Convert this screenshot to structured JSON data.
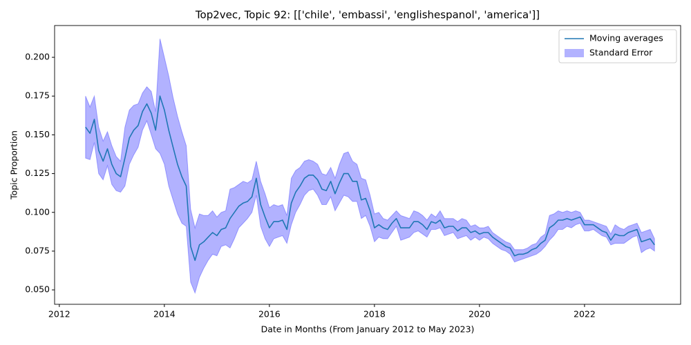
{
  "chart_data": {
    "type": "line",
    "title": "Top2vec, Topic 92: [['chile', 'embassi', 'englishespanol', 'america']]",
    "xlabel": "Date in Months (From January 2012 to May 2023)",
    "ylabel": "Topic Proportion",
    "xlim": [
      2011.91,
      2023.83
    ],
    "ylim": [
      0.0407,
      0.2205
    ],
    "xticks": [
      2012,
      2014,
      2016,
      2018,
      2020,
      2022
    ],
    "yticks": [
      {
        "value": 0.05,
        "label": "0.050"
      },
      0.075,
      {
        "value": 0.1,
        "label": "0.100"
      },
      0.125,
      {
        "value": 0.15,
        "label": "0.150"
      },
      0.175,
      {
        "value": 0.2,
        "label": "0.200"
      }
    ],
    "legend": "upper right",
    "x": [
      2012.5,
      2012.583,
      2012.667,
      2012.75,
      2012.833,
      2012.917,
      2013.0,
      2013.083,
      2013.167,
      2013.25,
      2013.333,
      2013.417,
      2013.5,
      2013.583,
      2013.667,
      2013.75,
      2013.833,
      2013.917,
      2014.0,
      2014.083,
      2014.167,
      2014.25,
      2014.333,
      2014.417,
      2014.5,
      2014.583,
      2014.667,
      2014.75,
      2014.833,
      2014.917,
      2015.0,
      2015.083,
      2015.167,
      2015.25,
      2015.333,
      2015.417,
      2015.5,
      2015.583,
      2015.667,
      2015.75,
      2015.833,
      2015.917,
      2016.0,
      2016.083,
      2016.167,
      2016.25,
      2016.333,
      2016.417,
      2016.5,
      2016.583,
      2016.667,
      2016.75,
      2016.833,
      2016.917,
      2017.0,
      2017.083,
      2017.167,
      2017.25,
      2017.333,
      2017.417,
      2017.5,
      2017.583,
      2017.667,
      2017.75,
      2017.833,
      2017.917,
      2018.0,
      2018.083,
      2018.167,
      2018.25,
      2018.333,
      2018.417,
      2018.5,
      2018.583,
      2018.667,
      2018.75,
      2018.833,
      2018.917,
      2019.0,
      2019.083,
      2019.167,
      2019.25,
      2019.333,
      2019.417,
      2019.5,
      2019.583,
      2019.667,
      2019.75,
      2019.833,
      2019.917,
      2020.0,
      2020.083,
      2020.167,
      2020.25,
      2020.333,
      2020.417,
      2020.5,
      2020.583,
      2020.667,
      2020.75,
      2020.833,
      2020.917,
      2021.0,
      2021.083,
      2021.167,
      2021.25,
      2021.333,
      2021.417,
      2021.5,
      2021.583,
      2021.667,
      2021.75,
      2021.833,
      2021.917,
      2022.0,
      2022.083,
      2022.167,
      2022.25,
      2022.333,
      2022.417,
      2022.5,
      2022.583,
      2022.667,
      2022.75,
      2022.833,
      2022.917,
      2023.0,
      2023.083,
      2023.167,
      2023.25,
      2023.333
    ],
    "series": [
      {
        "name": "Moving averages",
        "color": "#1f77b4",
        "values": [
          0.155,
          0.151,
          0.16,
          0.14,
          0.133,
          0.141,
          0.131,
          0.125,
          0.123,
          0.135,
          0.148,
          0.153,
          0.156,
          0.165,
          0.17,
          0.164,
          0.153,
          0.175,
          0.166,
          0.153,
          0.142,
          0.131,
          0.123,
          0.117,
          0.078,
          0.069,
          0.079,
          0.081,
          0.084,
          0.087,
          0.085,
          0.089,
          0.09,
          0.096,
          0.1,
          0.104,
          0.106,
          0.107,
          0.11,
          0.122,
          0.105,
          0.097,
          0.09,
          0.094,
          0.094,
          0.095,
          0.089,
          0.106,
          0.113,
          0.117,
          0.122,
          0.124,
          0.124,
          0.121,
          0.115,
          0.114,
          0.12,
          0.112,
          0.119,
          0.125,
          0.125,
          0.12,
          0.12,
          0.108,
          0.109,
          0.101,
          0.09,
          0.092,
          0.09,
          0.089,
          0.093,
          0.096,
          0.09,
          0.09,
          0.09,
          0.094,
          0.094,
          0.092,
          0.089,
          0.094,
          0.093,
          0.095,
          0.09,
          0.091,
          0.091,
          0.088,
          0.09,
          0.09,
          0.087,
          0.088,
          0.086,
          0.087,
          0.087,
          0.084,
          0.082,
          0.08,
          0.078,
          0.077,
          0.072,
          0.073,
          0.073,
          0.074,
          0.076,
          0.077,
          0.08,
          0.082,
          0.09,
          0.092,
          0.095,
          0.095,
          0.096,
          0.095,
          0.096,
          0.097,
          0.092,
          0.092,
          0.092,
          0.09,
          0.088,
          0.087,
          0.082,
          0.086,
          0.085,
          0.085,
          0.087,
          0.088,
          0.089,
          0.081,
          0.082,
          0.083,
          0.079
        ]
      }
    ],
    "band": {
      "name": "Standard Error",
      "color": "#0000ff",
      "upper": [
        0.175,
        0.168,
        0.175,
        0.155,
        0.146,
        0.152,
        0.143,
        0.136,
        0.133,
        0.155,
        0.166,
        0.169,
        0.17,
        0.177,
        0.181,
        0.178,
        0.165,
        0.212,
        0.2,
        0.188,
        0.174,
        0.162,
        0.152,
        0.143,
        0.102,
        0.09,
        0.099,
        0.098,
        0.098,
        0.101,
        0.097,
        0.1,
        0.101,
        0.115,
        0.116,
        0.118,
        0.12,
        0.119,
        0.121,
        0.133,
        0.12,
        0.112,
        0.103,
        0.105,
        0.104,
        0.105,
        0.098,
        0.122,
        0.127,
        0.129,
        0.133,
        0.134,
        0.133,
        0.131,
        0.125,
        0.124,
        0.129,
        0.122,
        0.131,
        0.138,
        0.139,
        0.133,
        0.131,
        0.122,
        0.121,
        0.111,
        0.099,
        0.1,
        0.096,
        0.095,
        0.098,
        0.101,
        0.098,
        0.097,
        0.096,
        0.101,
        0.1,
        0.098,
        0.095,
        0.099,
        0.097,
        0.101,
        0.096,
        0.096,
        0.096,
        0.094,
        0.096,
        0.095,
        0.091,
        0.092,
        0.09,
        0.09,
        0.091,
        0.087,
        0.085,
        0.083,
        0.081,
        0.08,
        0.076,
        0.076,
        0.076,
        0.077,
        0.079,
        0.08,
        0.084,
        0.086,
        0.098,
        0.099,
        0.101,
        0.1,
        0.101,
        0.1,
        0.101,
        0.1,
        0.095,
        0.095,
        0.094,
        0.093,
        0.092,
        0.091,
        0.086,
        0.092,
        0.09,
        0.089,
        0.091,
        0.092,
        0.093,
        0.087,
        0.088,
        0.089,
        0.083
      ],
      "lower": [
        0.135,
        0.134,
        0.145,
        0.125,
        0.121,
        0.13,
        0.118,
        0.114,
        0.113,
        0.117,
        0.131,
        0.137,
        0.142,
        0.153,
        0.159,
        0.15,
        0.141,
        0.138,
        0.131,
        0.117,
        0.108,
        0.099,
        0.093,
        0.091,
        0.055,
        0.048,
        0.058,
        0.064,
        0.069,
        0.073,
        0.072,
        0.078,
        0.079,
        0.077,
        0.083,
        0.09,
        0.093,
        0.096,
        0.1,
        0.111,
        0.091,
        0.083,
        0.078,
        0.083,
        0.084,
        0.085,
        0.08,
        0.092,
        0.1,
        0.105,
        0.111,
        0.114,
        0.115,
        0.111,
        0.105,
        0.105,
        0.11,
        0.101,
        0.106,
        0.111,
        0.11,
        0.107,
        0.107,
        0.096,
        0.098,
        0.091,
        0.081,
        0.084,
        0.083,
        0.083,
        0.087,
        0.091,
        0.082,
        0.083,
        0.084,
        0.087,
        0.088,
        0.086,
        0.084,
        0.089,
        0.089,
        0.09,
        0.085,
        0.086,
        0.087,
        0.083,
        0.084,
        0.085,
        0.082,
        0.084,
        0.082,
        0.084,
        0.083,
        0.08,
        0.078,
        0.076,
        0.075,
        0.073,
        0.068,
        0.069,
        0.07,
        0.071,
        0.072,
        0.073,
        0.075,
        0.078,
        0.082,
        0.085,
        0.089,
        0.089,
        0.091,
        0.09,
        0.092,
        0.093,
        0.088,
        0.088,
        0.089,
        0.087,
        0.085,
        0.084,
        0.079,
        0.08,
        0.08,
        0.08,
        0.082,
        0.084,
        0.085,
        0.074,
        0.076,
        0.077,
        0.075
      ]
    }
  }
}
